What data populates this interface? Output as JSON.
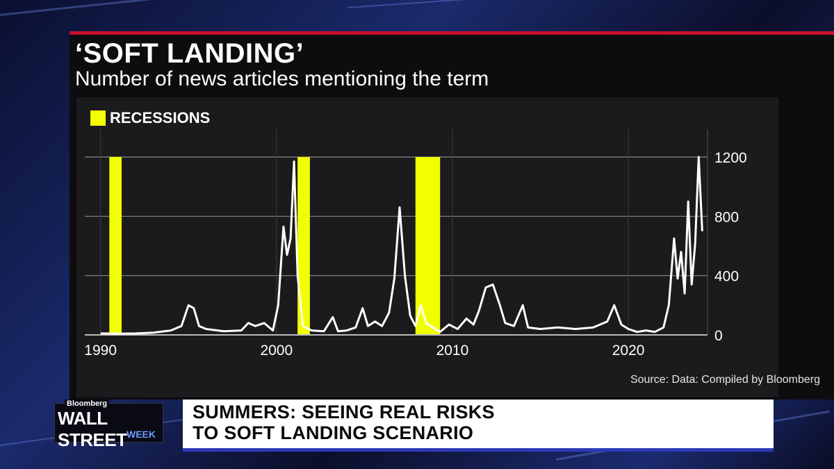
{
  "title": "‘SOFT LANDING’",
  "subtitle": "Number of news articles mentioning the term",
  "legend_label": "RECESSIONS",
  "source": "Source: Data: Compiled by Bloomberg",
  "colors": {
    "recession": "#f2ff00",
    "line": "#ffffff",
    "accent_bar": "#c8102e",
    "headline_border": "#2d3ab8"
  },
  "branding": {
    "small": "Bloomberg",
    "main": "WALL STREET",
    "sub": "WEEK"
  },
  "headline": {
    "line1": "SUMMERS: SEEING REAL RISKS",
    "line2": "TO SOFT LANDING SCENARIO"
  },
  "chart_data": {
    "type": "line",
    "title": "‘SOFT LANDING’",
    "subtitle": "Number of news articles mentioning the term",
    "xlabel": "",
    "ylabel": "",
    "xlim": [
      1989.5,
      2024.5
    ],
    "ylim": [
      0,
      1200
    ],
    "x_ticks": [
      1990,
      2000,
      2010,
      2020
    ],
    "y_ticks": [
      0,
      400,
      800,
      1200
    ],
    "y_axis_side": "right",
    "grid": true,
    "recessions": [
      [
        1990.5,
        1991.2
      ],
      [
        2001.2,
        2001.9
      ],
      [
        2007.9,
        2009.3
      ]
    ],
    "series": [
      {
        "points": [
          [
            1990.0,
            10
          ],
          [
            1991.0,
            8
          ],
          [
            1992.0,
            10
          ],
          [
            1993.0,
            15
          ],
          [
            1994.0,
            30
          ],
          [
            1994.6,
            60
          ],
          [
            1995.0,
            200
          ],
          [
            1995.3,
            180
          ],
          [
            1995.6,
            60
          ],
          [
            1996.0,
            40
          ],
          [
            1997.0,
            25
          ],
          [
            1998.0,
            30
          ],
          [
            1998.4,
            80
          ],
          [
            1998.8,
            60
          ],
          [
            1999.3,
            80
          ],
          [
            1999.8,
            30
          ],
          [
            2000.1,
            200
          ],
          [
            2000.4,
            730
          ],
          [
            2000.6,
            540
          ],
          [
            2000.8,
            650
          ],
          [
            2001.0,
            1170
          ],
          [
            2001.2,
            400
          ],
          [
            2001.5,
            60
          ],
          [
            2002.0,
            30
          ],
          [
            2002.7,
            25
          ],
          [
            2003.2,
            120
          ],
          [
            2003.5,
            25
          ],
          [
            2004.0,
            30
          ],
          [
            2004.5,
            50
          ],
          [
            2004.9,
            180
          ],
          [
            2005.2,
            60
          ],
          [
            2005.6,
            90
          ],
          [
            2006.0,
            60
          ],
          [
            2006.4,
            150
          ],
          [
            2006.7,
            380
          ],
          [
            2007.0,
            860
          ],
          [
            2007.3,
            400
          ],
          [
            2007.6,
            130
          ],
          [
            2007.9,
            60
          ],
          [
            2008.2,
            200
          ],
          [
            2008.5,
            80
          ],
          [
            2008.9,
            50
          ],
          [
            2009.3,
            20
          ],
          [
            2009.8,
            70
          ],
          [
            2010.3,
            40
          ],
          [
            2010.8,
            110
          ],
          [
            2011.2,
            70
          ],
          [
            2011.5,
            160
          ],
          [
            2011.9,
            320
          ],
          [
            2012.3,
            340
          ],
          [
            2012.7,
            200
          ],
          [
            2013.0,
            80
          ],
          [
            2013.5,
            60
          ],
          [
            2014.0,
            200
          ],
          [
            2014.3,
            50
          ],
          [
            2015.0,
            40
          ],
          [
            2016.0,
            50
          ],
          [
            2017.0,
            40
          ],
          [
            2018.0,
            50
          ],
          [
            2018.8,
            90
          ],
          [
            2019.2,
            200
          ],
          [
            2019.6,
            70
          ],
          [
            2020.0,
            40
          ],
          [
            2020.5,
            20
          ],
          [
            2021.0,
            30
          ],
          [
            2021.5,
            20
          ],
          [
            2022.0,
            50
          ],
          [
            2022.3,
            200
          ],
          [
            2022.6,
            650
          ],
          [
            2022.8,
            380
          ],
          [
            2023.0,
            560
          ],
          [
            2023.2,
            280
          ],
          [
            2023.4,
            900
          ],
          [
            2023.6,
            340
          ],
          [
            2023.8,
            620
          ],
          [
            2024.0,
            1200
          ],
          [
            2024.2,
            700
          ]
        ]
      }
    ]
  }
}
